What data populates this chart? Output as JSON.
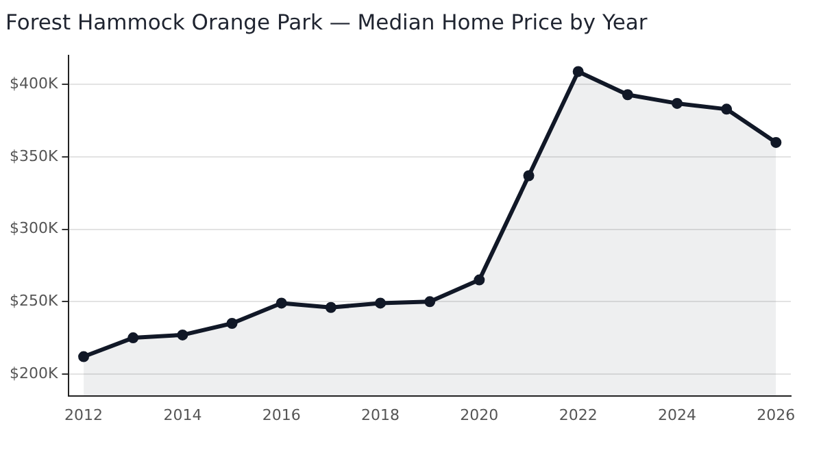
{
  "chart_data": {
    "type": "area",
    "title": "Forest Hammock Orange Park — Median Home Price by Year",
    "x": [
      2012,
      2013,
      2014,
      2015,
      2016,
      2017,
      2018,
      2019,
      2020,
      2021,
      2022,
      2023,
      2024,
      2025,
      2026
    ],
    "series": [
      {
        "color": "#111827",
        "values": [
          212,
          225,
          227,
          235,
          249,
          246,
          249,
          250,
          265,
          337,
          409,
          393,
          387,
          383,
          360
        ]
      }
    ],
    "xlim": [
      2011.7,
      2026.3
    ],
    "xticks": [
      2012,
      2014,
      2016,
      2018,
      2020,
      2022,
      2024,
      2026
    ],
    "ylim": [
      185,
      420
    ],
    "yticks": [
      {
        "value": 200,
        "label": "$200K"
      },
      {
        "value": 250,
        "label": "$250K"
      },
      {
        "value": 300,
        "label": "$300K"
      },
      {
        "value": 350,
        "label": "$350K"
      },
      {
        "value": 400,
        "label": "$400K"
      }
    ],
    "grid": "y",
    "marker": "circle",
    "line_style": "solid",
    "legend": false
  }
}
